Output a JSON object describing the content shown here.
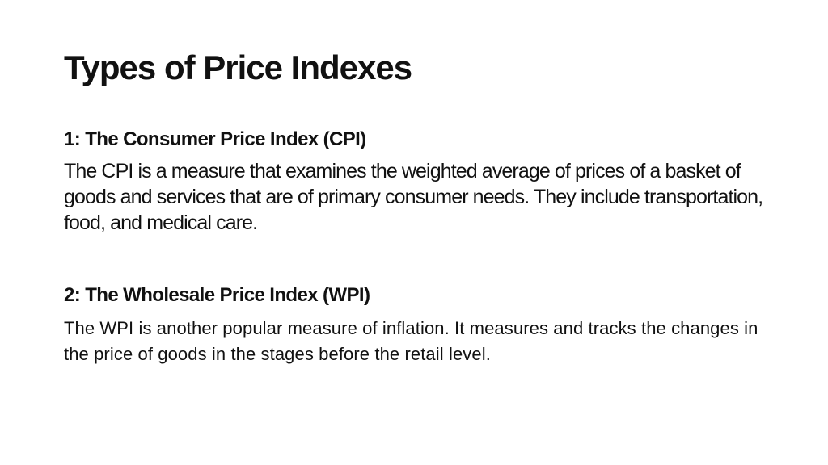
{
  "slide": {
    "title": "Types of Price Indexes",
    "sections": [
      {
        "heading": "1: The Consumer Price Index (CPI)",
        "body": "The CPI is a measure that examines the weighted average of prices of a basket of goods and services that are of primary consumer needs. They include transportation, food, and medical care."
      },
      {
        "heading": "2: The Wholesale Price Index (WPI)",
        "body": "The WPI is another popular measure of inflation. It measures and tracks the changes in the price of goods in the stages before the retail level."
      }
    ]
  }
}
